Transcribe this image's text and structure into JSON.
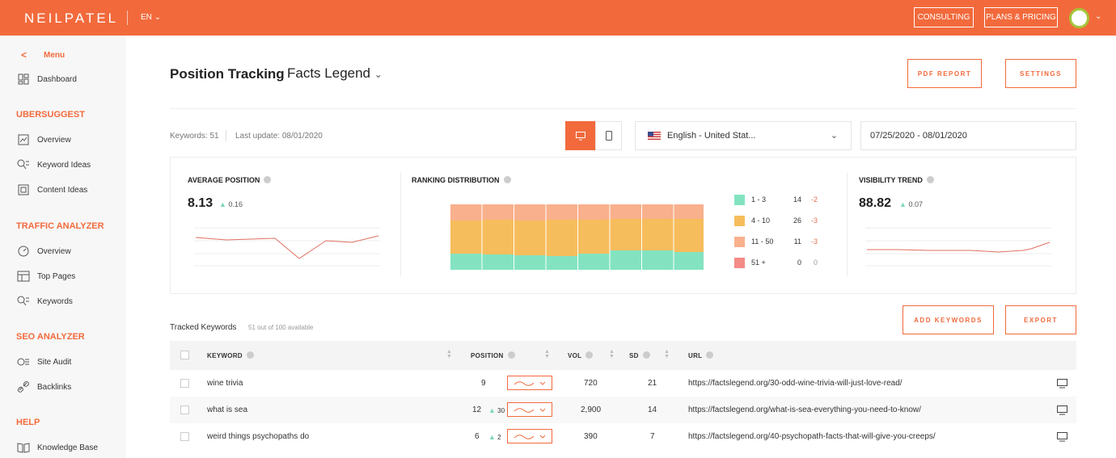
{
  "topbar": {
    "logo": "NEILPATEL",
    "lang": "EN",
    "consulting": "CONSULTING",
    "plans": "PLANS & PRICING"
  },
  "sidebar": {
    "menu": "Menu",
    "dashboard": "Dashboard",
    "sections": [
      {
        "title": "UBERSUGGEST",
        "items": [
          "Overview",
          "Keyword Ideas",
          "Content Ideas"
        ]
      },
      {
        "title": "TRAFFIC ANALYZER",
        "items": [
          "Overview",
          "Top Pages",
          "Keywords"
        ]
      },
      {
        "title": "SEO ANALYZER",
        "items": [
          "Site Audit",
          "Backlinks"
        ]
      },
      {
        "title": "HELP",
        "items": [
          "Knowledge Base"
        ]
      }
    ]
  },
  "header": {
    "title": "Position Tracking",
    "project": "Facts Legend",
    "pdf_report": "PDF REPORT",
    "settings": "SETTINGS"
  },
  "meta": {
    "keywords": "Keywords: 51",
    "last_update": "Last update: 08/01/2020"
  },
  "filters": {
    "language": "English - United Stat...",
    "date_range": "07/25/2020 - 08/01/2020"
  },
  "stats": {
    "avg_position": {
      "title": "AVERAGE POSITION",
      "value": "8.13",
      "delta": "0.16"
    },
    "ranking_distribution": {
      "title": "RANKING DISTRIBUTION",
      "legend": [
        {
          "label": "1 - 3",
          "count": "14",
          "change": "-2",
          "color": "#83e3c1"
        },
        {
          "label": "4 - 10",
          "count": "26",
          "change": "-3",
          "color": "#f6bd5c"
        },
        {
          "label": "11 - 50",
          "count": "11",
          "change": "-3",
          "color": "#f9b08d"
        },
        {
          "label": "51 +",
          "count": "0",
          "change": "0",
          "color": "#f38b86"
        }
      ]
    },
    "visibility": {
      "title": "VISIBILITY TREND",
      "value": "88.82",
      "delta": "0.07"
    }
  },
  "tracked": {
    "title": "Tracked Keywords",
    "subtitle": "51 out of 100 available",
    "add_keywords": "ADD KEYWORDS",
    "export": "EXPORT",
    "columns": {
      "keyword": "KEYWORD",
      "position": "POSITION",
      "vol": "VOL",
      "sd": "SD",
      "url": "URL"
    },
    "rows": [
      {
        "keyword": "wine trivia",
        "position": "9",
        "change": "",
        "vol": "720",
        "sd": "21",
        "url": "https://factslegend.org/30-odd-wine-trivia-will-just-love-read/"
      },
      {
        "keyword": "what is sea",
        "position": "12",
        "change": "30",
        "vol": "2,900",
        "sd": "14",
        "url": "https://factslegend.org/what-is-sea-everything-you-need-to-know/"
      },
      {
        "keyword": "weird things psychopaths do",
        "position": "6",
        "change": "2",
        "vol": "390",
        "sd": "7",
        "url": "https://factslegend.org/40-psychopath-facts-that-will-give-you-creeps/"
      }
    ]
  },
  "colors": {
    "accent": "#f26a3c",
    "up": "#7fd8b7"
  }
}
